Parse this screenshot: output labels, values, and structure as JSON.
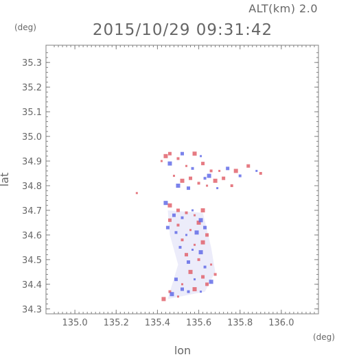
{
  "chart_data": {
    "type": "scatter",
    "title": "2015/10/29 09:31:42",
    "subtitle": "ALT(km) 2.0",
    "xlabel": "lon",
    "ylabel": "lat",
    "x_unit": "(deg)",
    "y_unit": "(deg)",
    "xlim": [
      134.86,
      136.18
    ],
    "ylim": [
      34.28,
      35.37
    ],
    "x_ticks": [
      "135.0",
      "135.2",
      "135.4",
      "135.6",
      "135.8",
      "136.0"
    ],
    "y_ticks": [
      "34.3",
      "34.4",
      "34.5",
      "34.6",
      "34.7",
      "34.8",
      "34.9",
      "35.0",
      "35.1",
      "35.2",
      "35.3"
    ],
    "grid": false,
    "colors": {
      "positive": "#e05a64",
      "negative": "#5a64e6",
      "weak": "#c8c8f0",
      "axis": "#808080"
    },
    "series": [
      {
        "points": [
          [
            135.42,
            34.9
          ],
          [
            135.44,
            34.92
          ],
          [
            135.46,
            34.93
          ],
          [
            135.5,
            34.91
          ],
          [
            135.54,
            34.88
          ],
          [
            135.58,
            34.93
          ],
          [
            135.62,
            34.89
          ],
          [
            135.66,
            34.86
          ],
          [
            135.7,
            34.86
          ],
          [
            135.78,
            34.86
          ],
          [
            135.84,
            34.88
          ],
          [
            135.9,
            34.85
          ],
          [
            135.48,
            34.84
          ],
          [
            135.52,
            34.82
          ],
          [
            135.56,
            34.83
          ],
          [
            135.6,
            34.81
          ],
          [
            135.64,
            34.8
          ],
          [
            135.68,
            34.82
          ],
          [
            135.72,
            34.83
          ],
          [
            135.76,
            34.8
          ],
          [
            135.3,
            34.77
          ],
          [
            135.46,
            34.72
          ],
          [
            135.5,
            34.7
          ],
          [
            135.54,
            34.69
          ],
          [
            135.58,
            34.68
          ],
          [
            135.62,
            34.7
          ],
          [
            135.46,
            34.66
          ],
          [
            135.5,
            34.64
          ],
          [
            135.56,
            34.62
          ],
          [
            135.6,
            34.65
          ],
          [
            135.64,
            34.6
          ],
          [
            135.52,
            34.58
          ],
          [
            135.58,
            34.56
          ],
          [
            135.62,
            34.57
          ],
          [
            135.54,
            34.52
          ],
          [
            135.6,
            34.5
          ],
          [
            135.66,
            34.48
          ],
          [
            135.56,
            34.45
          ],
          [
            135.62,
            34.43
          ],
          [
            135.68,
            34.44
          ],
          [
            135.52,
            34.4
          ],
          [
            135.58,
            34.38
          ],
          [
            135.64,
            34.4
          ],
          [
            135.46,
            34.37
          ],
          [
            135.5,
            34.35
          ],
          [
            135.43,
            34.34
          ]
        ]
      },
      {
        "points": [
          [
            135.46,
            34.89
          ],
          [
            135.52,
            34.93
          ],
          [
            135.57,
            34.87
          ],
          [
            135.61,
            34.92
          ],
          [
            135.65,
            34.84
          ],
          [
            135.74,
            34.87
          ],
          [
            135.8,
            34.84
          ],
          [
            135.88,
            34.86
          ],
          [
            135.5,
            34.8
          ],
          [
            135.55,
            34.79
          ],
          [
            135.63,
            34.83
          ],
          [
            135.69,
            34.79
          ],
          [
            135.44,
            34.73
          ],
          [
            135.48,
            34.68
          ],
          [
            135.52,
            34.67
          ],
          [
            135.57,
            34.7
          ],
          [
            135.61,
            34.66
          ],
          [
            135.45,
            34.63
          ],
          [
            135.49,
            34.61
          ],
          [
            135.54,
            34.6
          ],
          [
            135.59,
            34.61
          ],
          [
            135.63,
            34.63
          ],
          [
            135.51,
            34.55
          ],
          [
            135.57,
            34.54
          ],
          [
            135.61,
            34.53
          ],
          [
            135.55,
            34.49
          ],
          [
            135.63,
            34.47
          ],
          [
            135.58,
            34.42
          ],
          [
            135.66,
            34.41
          ],
          [
            135.49,
            34.42
          ],
          [
            135.55,
            34.37
          ],
          [
            135.61,
            34.37
          ],
          [
            135.47,
            34.36
          ],
          [
            135.52,
            34.38
          ]
        ]
      }
    ]
  }
}
